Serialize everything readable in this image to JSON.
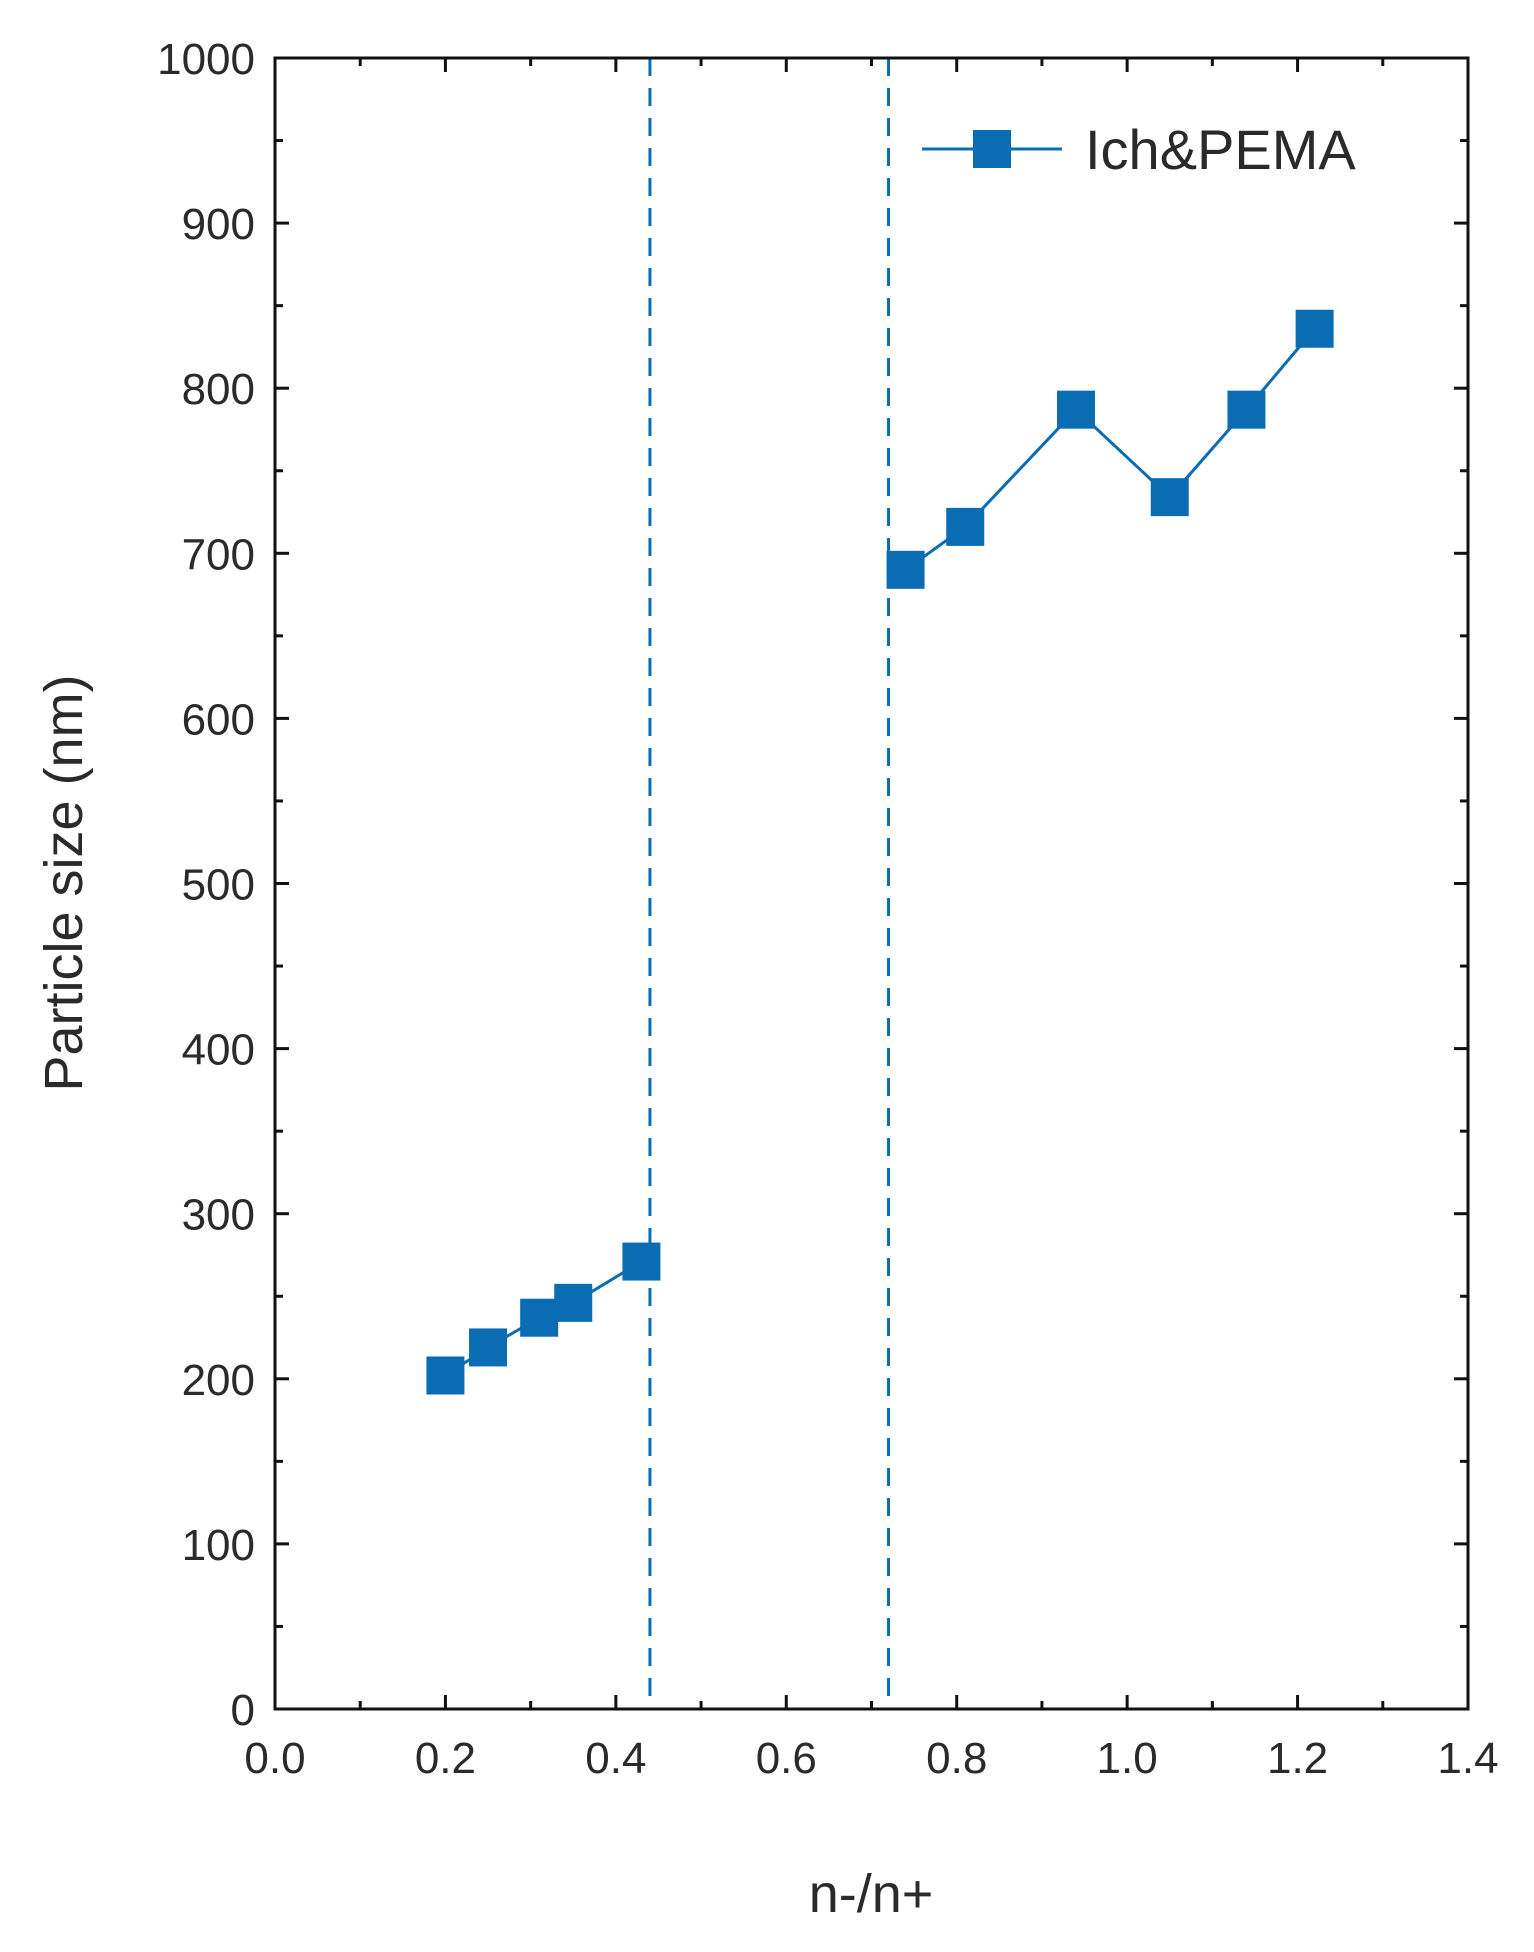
{
  "chart_data": {
    "type": "line",
    "title": "",
    "xlabel": "n-/n+",
    "ylabel": "Particle size (nm)",
    "xlim": [
      0.0,
      1.4
    ],
    "ylim": [
      0,
      1000
    ],
    "x_ticks": [
      0.0,
      0.2,
      0.4,
      0.6,
      0.8,
      1.0,
      1.2,
      1.4
    ],
    "x_tick_labels": [
      "0.0",
      "0.2",
      "0.4",
      "0.6",
      "0.8",
      "1.0",
      "1.2",
      "1.4"
    ],
    "y_ticks": [
      0,
      100,
      200,
      300,
      400,
      500,
      600,
      700,
      800,
      900,
      1000
    ],
    "y_tick_labels": [
      "0",
      "100",
      "200",
      "300",
      "400",
      "500",
      "600",
      "700",
      "800",
      "900",
      "1000"
    ],
    "grid": false,
    "legend_position": "top-right",
    "color": "#0a6db3",
    "vertical_reference_lines": [
      0.44,
      0.72
    ],
    "series": [
      {
        "name": "Ich&PEMA",
        "marker": "square",
        "segments": [
          [
            {
              "x": 0.2,
              "y": 202
            },
            {
              "x": 0.25,
              "y": 219
            },
            {
              "x": 0.31,
              "y": 237
            },
            {
              "x": 0.35,
              "y": 246
            },
            {
              "x": 0.43,
              "y": 271
            }
          ],
          [
            {
              "x": 0.74,
              "y": 690
            },
            {
              "x": 0.81,
              "y": 716
            },
            {
              "x": 0.94,
              "y": 787
            },
            {
              "x": 1.05,
              "y": 734
            },
            {
              "x": 1.14,
              "y": 787
            },
            {
              "x": 1.22,
              "y": 836
            }
          ]
        ]
      }
    ]
  }
}
